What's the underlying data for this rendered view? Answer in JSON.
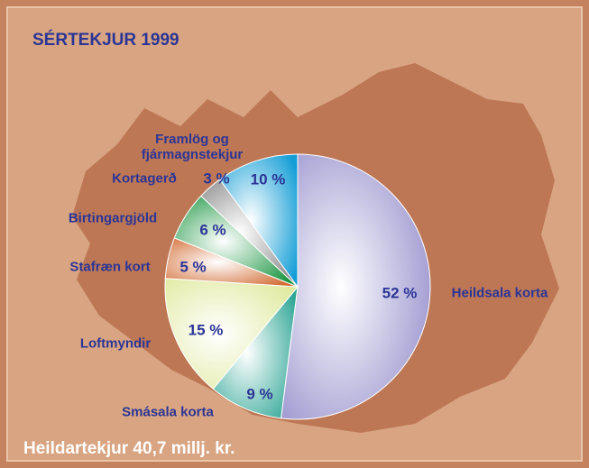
{
  "chart_data": {
    "type": "pie",
    "title": "SÉRTEKJUR 1999",
    "annotation": "Heildartekjur  40,7 millj. kr.",
    "categories": [
      "Heildsala korta",
      "Smásala korta",
      "Loftmyndir",
      "Stafræn kort",
      "Birtingargjöld",
      "Kortagerð",
      "Framlög og fjármagnstekjur"
    ],
    "values": [
      52,
      9,
      15,
      5,
      6,
      3,
      10
    ],
    "value_labels": [
      "52 %",
      "9 %",
      "15 %",
      "5 %",
      "6 %",
      "3 %",
      "10 %"
    ],
    "colors": [
      "#9690cc",
      "#2fa696",
      "#dfe99c",
      "#d0642a",
      "#12913a",
      "#858585",
      "#149ed6"
    ]
  }
}
